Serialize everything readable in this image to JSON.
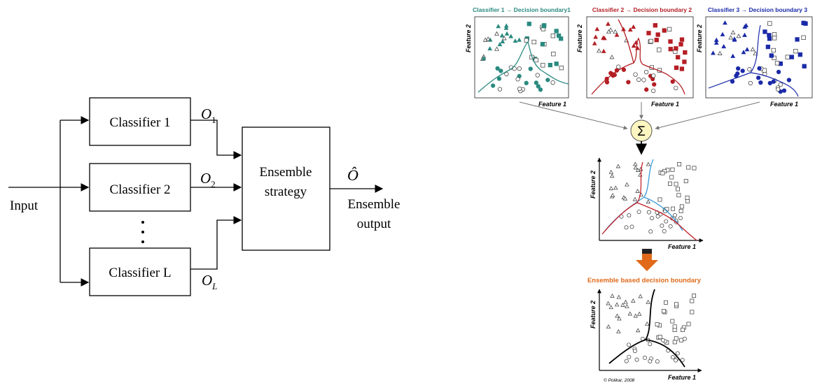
{
  "left_diagram": {
    "input_label": "Input",
    "classifiers": [
      "Classifier 1",
      "Classifier 2",
      "Classifier L"
    ],
    "outputs": [
      {
        "base": "O",
        "sub": "1"
      },
      {
        "base": "O",
        "sub": "2"
      },
      {
        "base": "O",
        "sub": "L"
      }
    ],
    "ensemble_box": [
      "Ensemble",
      "strategy"
    ],
    "ensemble_output_symbol": "Ô",
    "ensemble_output_label": [
      "Ensemble",
      "output"
    ]
  },
  "right_diagram": {
    "panel_titles": [
      "Classifier 1 → Decision boundary1",
      "Classifier 2 → Decision boundary 2",
      "Classifier 3 → Decision boundary 3"
    ],
    "feature_x": "Feature 1",
    "feature_y": "Feature 2",
    "sum_symbol": "Σ",
    "ensemble_caption": "Ensemble based decision boundary",
    "credit": "© Polikar, 2008",
    "colors": {
      "classifier1": "#2a8a80",
      "classifier2": "#b41e24",
      "classifier3": "#1a2aa8",
      "caption": "#e06a1a",
      "sum_fill": "#fdf6c0",
      "blue_line": "#3a9ad8"
    }
  }
}
